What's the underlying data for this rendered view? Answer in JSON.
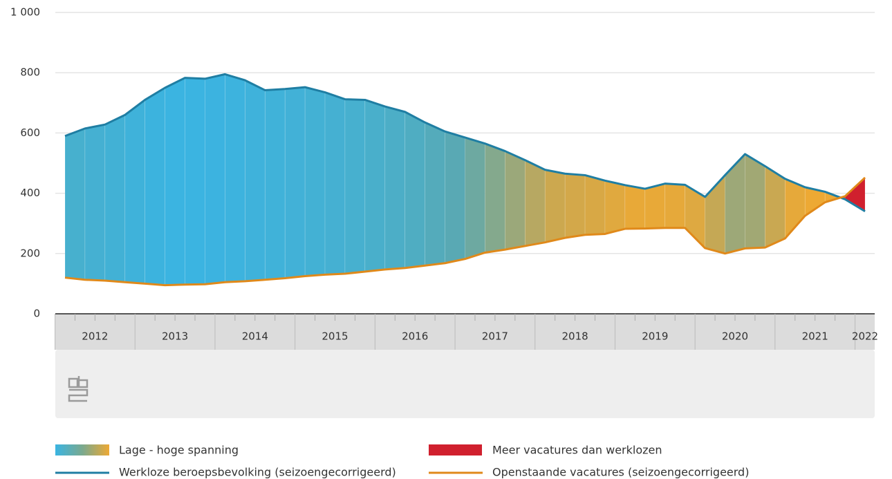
{
  "chart_data": {
    "type": "area_between",
    "x_labels": [
      "2012",
      "2013",
      "2014",
      "2015",
      "2016",
      "2017",
      "2018",
      "2019",
      "2020",
      "2021",
      "2022"
    ],
    "series": [
      {
        "name": "Werkloze beroepsbevolking (seizoengecorrigeerd)",
        "color": "#1f7ea3",
        "values": [
          590,
          615,
          628,
          660,
          710,
          750,
          783,
          780,
          795,
          775,
          742,
          746,
          752,
          735,
          712,
          710,
          688,
          670,
          635,
          605,
          585,
          565,
          540,
          510,
          478,
          465,
          460,
          442,
          427,
          415,
          432,
          428,
          388,
          460,
          530,
          490,
          448,
          420,
          405,
          380,
          340
        ]
      },
      {
        "name": "Openstaande vacatures (seizoengecorrigeerd)",
        "color": "#e0891a",
        "values": [
          120,
          113,
          110,
          105,
          100,
          95,
          97,
          98,
          105,
          108,
          113,
          118,
          125,
          130,
          133,
          140,
          147,
          152,
          160,
          168,
          182,
          203,
          213,
          225,
          237,
          252,
          262,
          265,
          282,
          283,
          285,
          285,
          218,
          200,
          217,
          220,
          250,
          325,
          370,
          390,
          452
        ]
      }
    ],
    "fills": [
      {
        "name": "Lage - hoge spanning",
        "colors": [
          "#3ab4e2",
          "#5aa9b2",
          "#c9a852",
          "#eda934"
        ]
      },
      {
        "name": "Meer vacatures dan werklozen",
        "color": "#d0202e"
      }
    ],
    "ylim": [
      0,
      1000
    ],
    "yticks": [
      0,
      200,
      400,
      600,
      800,
      {
        "value": 1000,
        "label": "1 000"
      }
    ],
    "grid": true
  }
}
